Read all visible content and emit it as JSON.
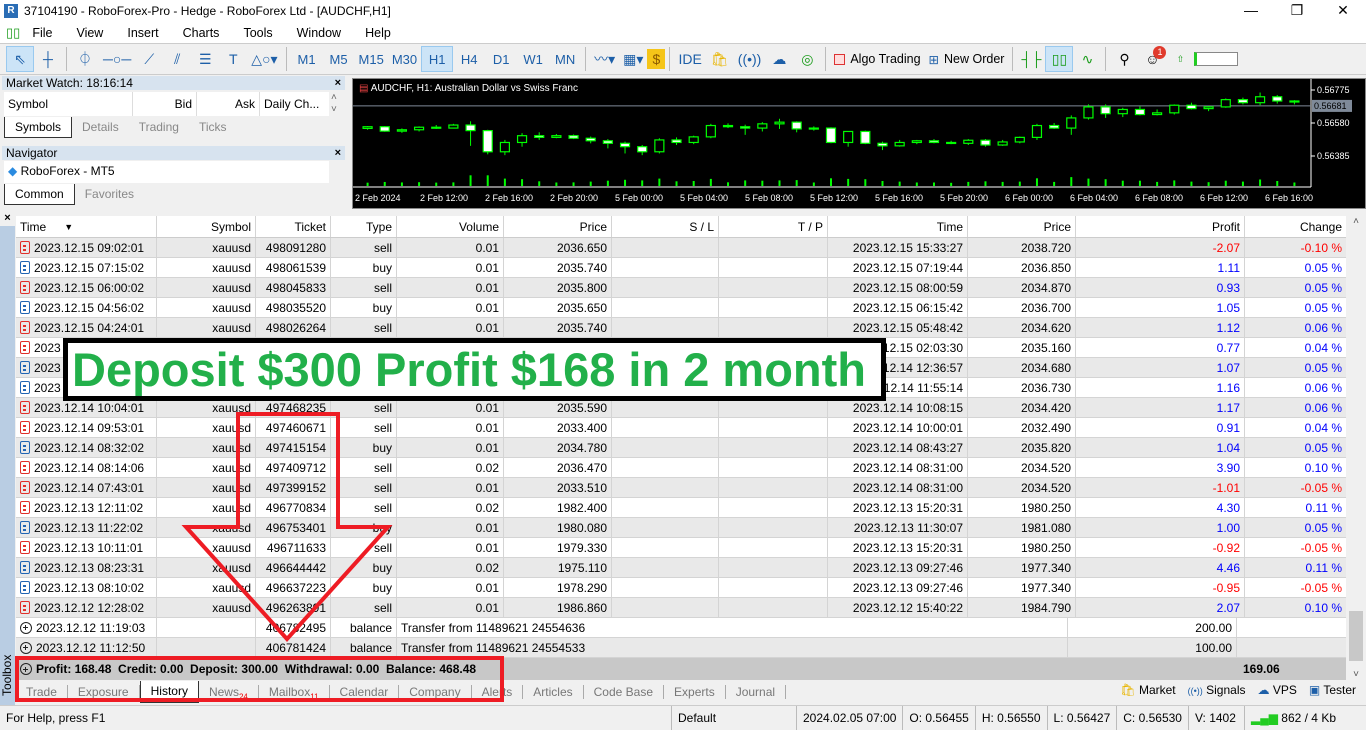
{
  "window": {
    "title": "37104190 - RoboForex-Pro - Hedge - RoboForex Ltd - [AUDCHF,H1]",
    "minimize": "—",
    "restore": "❐",
    "close": "✕"
  },
  "menu": [
    "File",
    "View",
    "Insert",
    "Charts",
    "Tools",
    "Window",
    "Help"
  ],
  "toolbar": {
    "timeframes": [
      "M1",
      "M5",
      "M15",
      "M30",
      "H1",
      "H4",
      "D1",
      "W1",
      "MN"
    ],
    "active_timeframe": "H1",
    "ide": "IDE",
    "algo_trading": "Algo Trading",
    "new_order": "New Order",
    "notifications_count": "1"
  },
  "market_watch": {
    "title": "Market Watch: 18:16:14",
    "columns": [
      "Symbol",
      "Bid",
      "Ask",
      "Daily Ch..."
    ],
    "tabs": [
      "Symbols",
      "Details",
      "Trading",
      "Ticks"
    ],
    "active_tab": "Symbols"
  },
  "navigator": {
    "title": "Navigator",
    "item": "RoboForex - MT5",
    "tabs": [
      "Common",
      "Favorites"
    ],
    "active_tab": "Common"
  },
  "chart": {
    "title": "AUDCHF, H1:  Australian Dollar vs Swiss Franc",
    "price_labels": [
      "0.56775",
      "0.56580",
      "0.56385"
    ],
    "current_price": "0.56681",
    "time_labels": [
      "2 Feb 2024",
      "2 Feb 12:00",
      "2 Feb 16:00",
      "2 Feb 20:00",
      "5 Feb 00:00",
      "5 Feb 04:00",
      "5 Feb 08:00",
      "5 Feb 12:00",
      "5 Feb 16:00",
      "5 Feb 20:00",
      "6 Feb 00:00",
      "6 Feb 04:00",
      "6 Feb 08:00",
      "6 Feb 12:00",
      "6 Feb 16:00"
    ],
    "colors": {
      "bg": "#000000",
      "candle": "#00ff00",
      "bear_body": "#ffffff",
      "price_line": "#7f8a99"
    },
    "candles_ohlc": [
      [
        0.56548,
        0.56562,
        0.5654,
        0.56558
      ],
      [
        0.56558,
        0.56562,
        0.56528,
        0.56532
      ],
      [
        0.56532,
        0.56548,
        0.56522,
        0.5654
      ],
      [
        0.5654,
        0.5656,
        0.5653,
        0.56555
      ],
      [
        0.56555,
        0.56568,
        0.56545,
        0.5655
      ],
      [
        0.5655,
        0.56575,
        0.56548,
        0.56568
      ],
      [
        0.56568,
        0.5659,
        0.56445,
        0.56535
      ],
      [
        0.56535,
        0.5654,
        0.56395,
        0.5641
      ],
      [
        0.5641,
        0.5648,
        0.5639,
        0.56465
      ],
      [
        0.56465,
        0.5652,
        0.5644,
        0.56505
      ],
      [
        0.56505,
        0.56525,
        0.5648,
        0.56495
      ],
      [
        0.56495,
        0.56515,
        0.5649,
        0.56505
      ],
      [
        0.56505,
        0.56512,
        0.56485,
        0.5649
      ],
      [
        0.5649,
        0.565,
        0.5646,
        0.56475
      ],
      [
        0.56475,
        0.56485,
        0.5643,
        0.5646
      ],
      [
        0.5646,
        0.5647,
        0.564,
        0.5644
      ],
      [
        0.5644,
        0.5645,
        0.5639,
        0.5641
      ],
      [
        0.5641,
        0.5649,
        0.564,
        0.5648
      ],
      [
        0.5648,
        0.56495,
        0.5645,
        0.56465
      ],
      [
        0.56465,
        0.56505,
        0.56455,
        0.56498
      ],
      [
        0.56498,
        0.56575,
        0.5649,
        0.56565
      ],
      [
        0.56565,
        0.56578,
        0.5655,
        0.56558
      ],
      [
        0.56558,
        0.5657,
        0.5651,
        0.5655
      ],
      [
        0.5655,
        0.56585,
        0.5653,
        0.56575
      ],
      [
        0.56575,
        0.56605,
        0.56545,
        0.56585
      ],
      [
        0.56585,
        0.5659,
        0.56525,
        0.56545
      ],
      [
        0.56545,
        0.5656,
        0.56535,
        0.5655
      ],
      [
        0.5655,
        0.56555,
        0.5646,
        0.56465
      ],
      [
        0.56465,
        0.56525,
        0.5644,
        0.5653
      ],
      [
        0.5653,
        0.56535,
        0.56455,
        0.5646
      ],
      [
        0.5646,
        0.5647,
        0.5642,
        0.56445
      ],
      [
        0.56445,
        0.5648,
        0.5644,
        0.56465
      ],
      [
        0.56465,
        0.5648,
        0.56455,
        0.56475
      ],
      [
        0.56475,
        0.56485,
        0.5646,
        0.56465
      ],
      [
        0.56465,
        0.56475,
        0.56455,
        0.5646
      ],
      [
        0.5646,
        0.56485,
        0.5645,
        0.56478
      ],
      [
        0.56478,
        0.56485,
        0.5644,
        0.5645
      ],
      [
        0.5645,
        0.5648,
        0.56445,
        0.56468
      ],
      [
        0.56468,
        0.565,
        0.5646,
        0.56495
      ],
      [
        0.56495,
        0.56575,
        0.5648,
        0.56565
      ],
      [
        0.56565,
        0.5658,
        0.56545,
        0.5655
      ],
      [
        0.5655,
        0.56625,
        0.5651,
        0.5661
      ],
      [
        0.5661,
        0.5669,
        0.566,
        0.56675
      ],
      [
        0.56675,
        0.5669,
        0.5661,
        0.56635
      ],
      [
        0.56635,
        0.5667,
        0.56615,
        0.5666
      ],
      [
        0.5666,
        0.5668,
        0.56625,
        0.5663
      ],
      [
        0.5663,
        0.5666,
        0.56625,
        0.5664
      ],
      [
        0.5664,
        0.5669,
        0.5663,
        0.56685
      ],
      [
        0.56685,
        0.567,
        0.5666,
        0.56665
      ],
      [
        0.56665,
        0.5668,
        0.5665,
        0.56675
      ],
      [
        0.56675,
        0.56725,
        0.5667,
        0.56718
      ],
      [
        0.56718,
        0.5673,
        0.5669,
        0.567
      ],
      [
        0.567,
        0.5676,
        0.56685,
        0.56735
      ],
      [
        0.56735,
        0.56745,
        0.56695,
        0.5671
      ],
      [
        0.5671,
        0.56715,
        0.5669,
        0.56705
      ]
    ]
  },
  "history": {
    "columns": [
      "Time",
      "Symbol",
      "Ticket",
      "Type",
      "Volume",
      "Price",
      "S / L",
      "T / P",
      "Time",
      "Price",
      "Profit",
      "Change"
    ],
    "rows": [
      {
        "kind": "sell",
        "cells": [
          "2023.12.15 09:02:01",
          "xauusd",
          "498091280",
          "sell",
          "0.01",
          "2036.650",
          "",
          "",
          "2023.12.15 15:33:27",
          "2038.720",
          "-2.07",
          "-0.10 %"
        ]
      },
      {
        "kind": "buy",
        "cells": [
          "2023.12.15 07:15:02",
          "xauusd",
          "498061539",
          "buy",
          "0.01",
          "2035.740",
          "",
          "",
          "2023.12.15 07:19:44",
          "2036.850",
          "1.11",
          "0.05 %"
        ]
      },
      {
        "kind": "sell",
        "cells": [
          "2023.12.15 06:00:02",
          "xauusd",
          "498045833",
          "sell",
          "0.01",
          "2035.800",
          "",
          "",
          "2023.12.15 08:00:59",
          "2034.870",
          "0.93",
          "0.05 %"
        ]
      },
      {
        "kind": "buy",
        "cells": [
          "2023.12.15 04:56:02",
          "xauusd",
          "498035520",
          "buy",
          "0.01",
          "2035.650",
          "",
          "",
          "2023.12.15 06:15:42",
          "2036.700",
          "1.05",
          "0.05 %"
        ]
      },
      {
        "kind": "sell",
        "cells": [
          "2023.12.15 04:24:01",
          "xauusd",
          "498026264",
          "sell",
          "0.01",
          "2035.740",
          "",
          "",
          "2023.12.15 05:48:42",
          "2034.620",
          "1.12",
          "0.06 %"
        ]
      },
      {
        "kind": "sell",
        "cells": [
          "2023",
          "",
          "",
          "",
          "",
          "",
          "",
          "",
          "2023.12.15 02:03:30",
          "2035.160",
          "0.77",
          "0.04 %"
        ]
      },
      {
        "kind": "buy",
        "cells": [
          "2023",
          "",
          "",
          "",
          "",
          "",
          "",
          "",
          "2023.12.14 12:36:57",
          "2034.680",
          "1.07",
          "0.05 %"
        ]
      },
      {
        "kind": "buy",
        "cells": [
          "2023",
          "",
          "",
          "",
          "",
          "",
          "",
          "",
          "2023.12.14 11:55:14",
          "2036.730",
          "1.16",
          "0.06 %"
        ]
      },
      {
        "kind": "sell",
        "cells": [
          "2023.12.14 10:04:01",
          "xauusd",
          "497468235",
          "sell",
          "0.01",
          "2035.590",
          "",
          "",
          "2023.12.14 10:08:15",
          "2034.420",
          "1.17",
          "0.06 %"
        ]
      },
      {
        "kind": "sell",
        "cells": [
          "2023.12.14 09:53:01",
          "xauusd",
          "497460671",
          "sell",
          "0.01",
          "2033.400",
          "",
          "",
          "2023.12.14 10:00:01",
          "2032.490",
          "0.91",
          "0.04 %"
        ]
      },
      {
        "kind": "buy",
        "cells": [
          "2023.12.14 08:32:02",
          "xauusd",
          "497415154",
          "buy",
          "0.01",
          "2034.780",
          "",
          "",
          "2023.12.14 08:43:27",
          "2035.820",
          "1.04",
          "0.05 %"
        ]
      },
      {
        "kind": "sell",
        "cells": [
          "2023.12.14 08:14:06",
          "xauusd",
          "497409712",
          "sell",
          "0.02",
          "2036.470",
          "",
          "",
          "2023.12.14 08:31:00",
          "2034.520",
          "3.90",
          "0.10 %"
        ]
      },
      {
        "kind": "sell",
        "cells": [
          "2023.12.14 07:43:01",
          "xauusd",
          "497399152",
          "sell",
          "0.01",
          "2033.510",
          "",
          "",
          "2023.12.14 08:31:00",
          "2034.520",
          "-1.01",
          "-0.05 %"
        ]
      },
      {
        "kind": "sell",
        "cells": [
          "2023.12.13 12:11:02",
          "xauusd",
          "496770834",
          "sell",
          "0.02",
          "1982.400",
          "",
          "",
          "2023.12.13 15:20:31",
          "1980.250",
          "4.30",
          "0.11 %"
        ]
      },
      {
        "kind": "buy",
        "cells": [
          "2023.12.13 11:22:02",
          "xauusd",
          "496753401",
          "buy",
          "0.01",
          "1980.080",
          "",
          "",
          "2023.12.13 11:30:07",
          "1981.080",
          "1.00",
          "0.05 %"
        ]
      },
      {
        "kind": "sell",
        "cells": [
          "2023.12.13 10:11:01",
          "xauusd",
          "496711633",
          "sell",
          "0.01",
          "1979.330",
          "",
          "",
          "2023.12.13 15:20:31",
          "1980.250",
          "-0.92",
          "-0.05 %"
        ]
      },
      {
        "kind": "buy",
        "cells": [
          "2023.12.13 08:23:31",
          "xauusd",
          "496644442",
          "buy",
          "0.02",
          "1975.110",
          "",
          "",
          "2023.12.13 09:27:46",
          "1977.340",
          "4.46",
          "0.11 %"
        ]
      },
      {
        "kind": "buy",
        "cells": [
          "2023.12.13 08:10:02",
          "xauusd",
          "496637223",
          "buy",
          "0.01",
          "1978.290",
          "",
          "",
          "2023.12.13 09:27:46",
          "1977.340",
          "-0.95",
          "-0.05 %"
        ]
      },
      {
        "kind": "sell",
        "cells": [
          "2023.12.12 12:28:02",
          "xauusd",
          "496263891",
          "sell",
          "0.01",
          "1986.860",
          "",
          "",
          "2023.12.12 15:40:22",
          "1984.790",
          "2.07",
          "0.10 %"
        ]
      },
      {
        "kind": "bal",
        "cells": [
          "2023.12.12 11:19:03",
          "",
          "406782495",
          "balance",
          "Transfer from 11489621 24554636",
          "",
          "",
          "",
          "",
          "",
          "200.00",
          ""
        ]
      },
      {
        "kind": "bal",
        "cells": [
          "2023.12.12 11:12:50",
          "",
          "406781424",
          "balance",
          "Transfer from 11489621 24554533",
          "",
          "",
          "",
          "",
          "",
          "100.00",
          ""
        ]
      }
    ],
    "summary": "Profit: 168.48  Credit: 0.00  Deposit: 300.00  Withdrawal: 0.00  Balance: 468.48",
    "summary_total": "169.06"
  },
  "bottom_tabs": [
    {
      "label": "Trade"
    },
    {
      "label": "Exposure"
    },
    {
      "label": "History",
      "active": true
    },
    {
      "label": "News",
      "badge": "24"
    },
    {
      "label": "Mailbox",
      "badge": "11"
    },
    {
      "label": "Calendar"
    },
    {
      "label": "Company"
    },
    {
      "label": "Alerts"
    },
    {
      "label": "Articles"
    },
    {
      "label": "Code Base"
    },
    {
      "label": "Experts"
    },
    {
      "label": "Journal"
    }
  ],
  "right_tabs": [
    "Market",
    "Signals",
    "VPS",
    "Tester"
  ],
  "toolbox_label": "Toolbox",
  "status": {
    "help": "For Help, press F1",
    "profile": "Default",
    "time": "2024.02.05 07:00",
    "open": "O: 0.56455",
    "high": "H: 0.56550",
    "low": "L: 0.56427",
    "close": "C: 0.56530",
    "volume": "V: 1402",
    "traffic": "862 / 4 Kb"
  },
  "overlay": {
    "banner": "Deposit $300 Profit $168 in 2 month",
    "banner_color": "#22b04a",
    "annotation_color": "#ee1c24"
  }
}
